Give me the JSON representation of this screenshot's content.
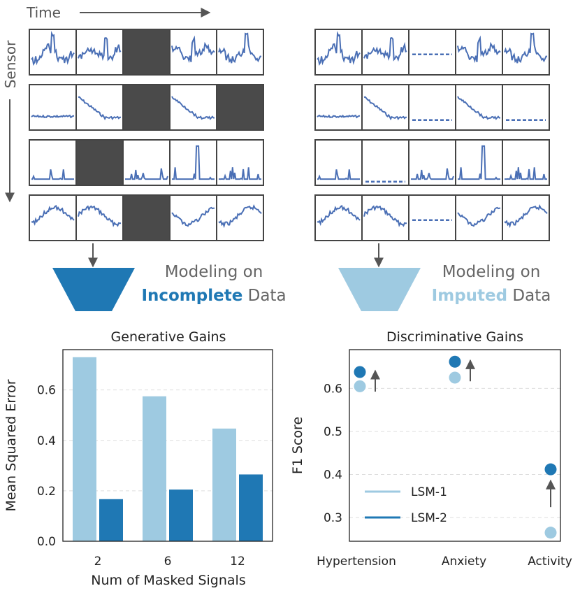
{
  "top": {
    "time_label": "Time",
    "sensor_label": "Sensor",
    "left_caption": {
      "line1": "Modeling on",
      "highlight": "Incomplete",
      "rest": " Data"
    },
    "right_caption": {
      "line1": "Modeling on",
      "highlight": "Imputed",
      "rest": " Data"
    },
    "left_grid_masked": [
      [
        false,
        false,
        true,
        false,
        false
      ],
      [
        false,
        false,
        true,
        false,
        true
      ],
      [
        false,
        true,
        false,
        false,
        false
      ],
      [
        false,
        false,
        true,
        false,
        false
      ]
    ],
    "right_grid_imputed": [
      [
        false,
        false,
        true,
        false,
        false
      ],
      [
        false,
        false,
        true,
        false,
        true
      ],
      [
        false,
        true,
        false,
        false,
        false
      ],
      [
        false,
        false,
        true,
        false,
        false
      ]
    ]
  },
  "colors": {
    "lsm1": "#9ecae1",
    "lsm2": "#1f78b4",
    "signal": "#4a6fb5",
    "mask": "#4a4a4a",
    "arrow": "#555555",
    "grid": "#dddddd"
  },
  "chart_data": [
    {
      "type": "bar",
      "title": "Generative Gains",
      "xlabel": "Num of Masked Signals",
      "ylabel": "Mean Squared Error",
      "categories": [
        "2",
        "6",
        "12"
      ],
      "series": [
        {
          "values": [
            0.73,
            0.575,
            0.447
          ]
        },
        {
          "values": [
            0.167,
            0.205,
            0.265
          ]
        }
      ],
      "ylim": [
        0,
        0.76
      ],
      "yticks": [
        "0.0",
        "0.2",
        "0.4",
        "0.6"
      ],
      "grid": "horizontal dashed"
    },
    {
      "type": "scatter",
      "title": "Discriminative Gains",
      "xlabel": "",
      "ylabel": "F1 Score",
      "categories": [
        "Hypertension",
        "Anxiety",
        "Activity"
      ],
      "series": [
        {
          "name": "LSM-1",
          "values": [
            0.605,
            0.625,
            0.265
          ]
        },
        {
          "name": "LSM-2",
          "values": [
            0.638,
            0.662,
            0.412
          ]
        }
      ],
      "ylim": [
        0.245,
        0.69
      ],
      "yticks": [
        "0.3",
        "0.4",
        "0.5",
        "0.6"
      ],
      "legend": "lower-left",
      "grid": "horizontal dashed"
    }
  ]
}
